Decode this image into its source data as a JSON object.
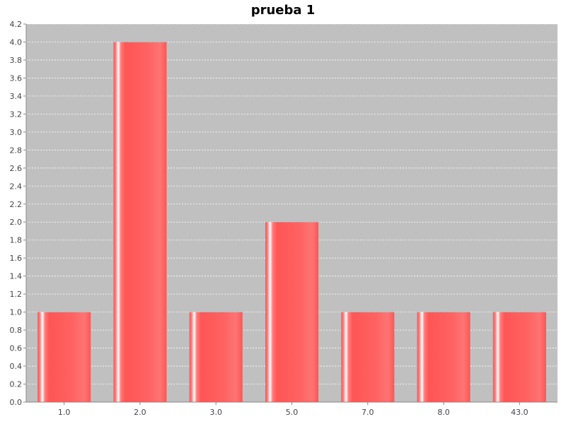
{
  "chart_data": {
    "type": "bar",
    "title": "prueba 1",
    "xlabel": "",
    "ylabel": "",
    "categories": [
      "1.0",
      "2.0",
      "3.0",
      "5.0",
      "7.0",
      "8.0",
      "43.0"
    ],
    "values": [
      1,
      4,
      1,
      2,
      1,
      1,
      1
    ],
    "ylim": [
      0,
      4.2
    ],
    "y_ticks": [
      "0.0",
      "0.2",
      "0.4",
      "0.6",
      "0.8",
      "1.0",
      "1.2",
      "1.4",
      "1.6",
      "1.8",
      "2.0",
      "2.2",
      "2.4",
      "2.6",
      "2.8",
      "3.0",
      "3.2",
      "3.4",
      "3.6",
      "3.8",
      "4.0",
      "4.2"
    ],
    "grid": true,
    "legend": "none",
    "colors": {
      "plot_background": "#c0c0c0",
      "bar": "#ff5555",
      "bar_highlight": "#ffffff",
      "gridline": "#ffffff",
      "axis": "#888888"
    }
  }
}
